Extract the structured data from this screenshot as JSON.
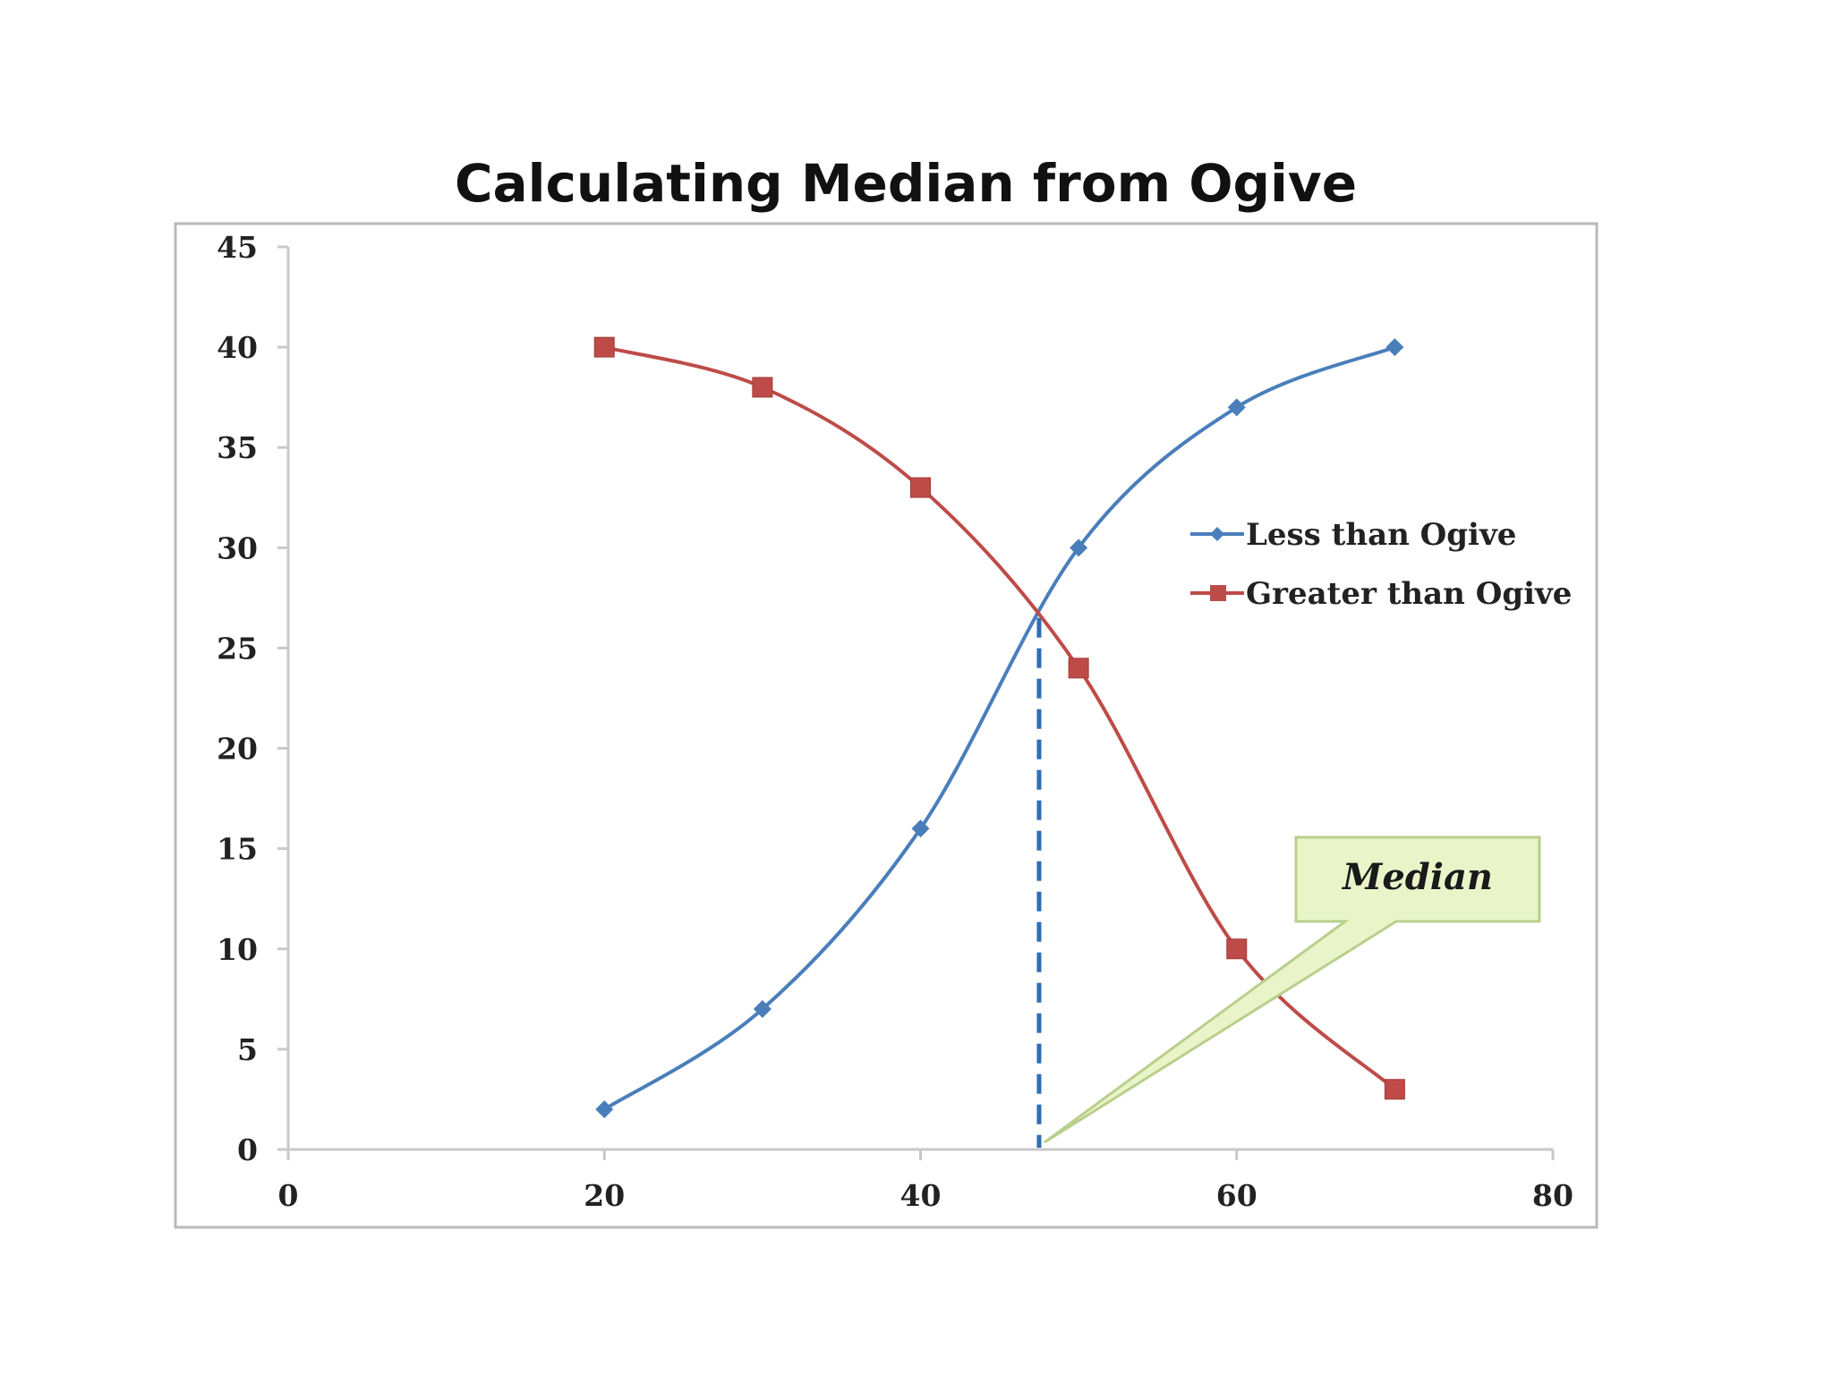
{
  "chart_data": {
    "type": "line",
    "title": "Calculating Median from Ogive",
    "xlabel": "",
    "ylabel": "",
    "xlim": [
      0,
      80
    ],
    "ylim": [
      0,
      45
    ],
    "x_ticks": [
      0,
      20,
      40,
      60,
      80
    ],
    "y_ticks": [
      0,
      5,
      10,
      15,
      20,
      25,
      30,
      35,
      40,
      45
    ],
    "grid": false,
    "smooth": true,
    "legend_position": "right",
    "series": [
      {
        "name": "Less than Ogive",
        "color": "#4a7ebb",
        "marker": "diamond",
        "x": [
          20,
          30,
          40,
          50,
          60,
          70
        ],
        "y": [
          2,
          7,
          16,
          30,
          37,
          40
        ]
      },
      {
        "name": "Greater than Ogive",
        "color": "#be4b48",
        "marker": "square",
        "x": [
          20,
          30,
          40,
          50,
          60,
          70
        ],
        "y": [
          40,
          38,
          33,
          24,
          10,
          3
        ]
      }
    ],
    "median_line": {
      "x": 47.5,
      "y": 26.5,
      "color": "#2e6eb5"
    },
    "annotation": {
      "text": "Median",
      "fill": "#e9f5c9",
      "border": "#b9cf8c"
    }
  }
}
